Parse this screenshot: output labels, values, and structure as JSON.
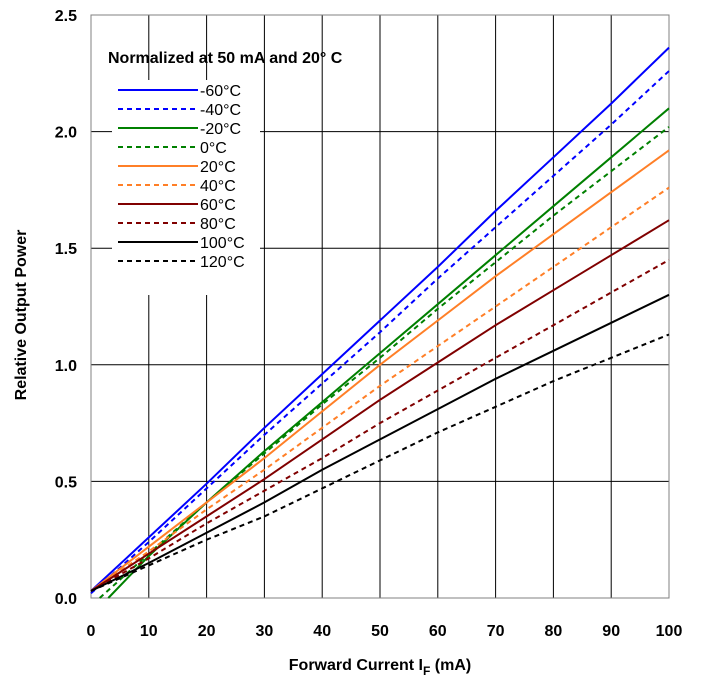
{
  "chart_data": {
    "type": "line",
    "title": "",
    "annotation": "Normalized at 50 mA and 20° C",
    "xlabel": "Forward Current I",
    "xlabel_sub": "F",
    "xlabel_unit": " (mA)",
    "ylabel": "Relative Output Power",
    "xlim": [
      0,
      100
    ],
    "ylim": [
      0,
      2.5
    ],
    "x_ticks": [
      "0",
      "10",
      "20",
      "30",
      "40",
      "50",
      "60",
      "70",
      "80",
      "90",
      "100"
    ],
    "y_ticks": [
      "0.0",
      "0.5",
      "1.0",
      "1.5",
      "2.0",
      "2.5"
    ],
    "grid": true,
    "legend_position": "top-left",
    "series": [
      {
        "name": "-60°C",
        "color": "#0000ff",
        "dashed": false,
        "x": [
          0,
          10,
          20,
          30,
          40,
          50,
          60,
          70,
          80,
          90,
          100
        ],
        "y": [
          0.03,
          0.26,
          0.49,
          0.73,
          0.96,
          1.19,
          1.42,
          1.66,
          1.89,
          2.12,
          2.36
        ]
      },
      {
        "name": "-40°C",
        "color": "#0000ff",
        "dashed": true,
        "x": [
          0,
          10,
          20,
          30,
          40,
          50,
          60,
          70,
          80,
          90,
          100
        ],
        "y": [
          0.02,
          0.24,
          0.47,
          0.7,
          0.92,
          1.14,
          1.37,
          1.59,
          1.81,
          2.03,
          2.26
        ]
      },
      {
        "name": "-20°C",
        "color": "#008000",
        "dashed": false,
        "x": [
          3,
          10,
          20,
          30,
          40,
          50,
          60,
          70,
          80,
          90,
          100
        ],
        "y": [
          0.0,
          0.18,
          0.41,
          0.63,
          0.84,
          1.05,
          1.26,
          1.47,
          1.68,
          1.89,
          2.1
        ]
      },
      {
        "name": "0°C",
        "color": "#008000",
        "dashed": true,
        "x": [
          1.5,
          10,
          20,
          30,
          40,
          50,
          60,
          70,
          80,
          90,
          100
        ],
        "y": [
          0.0,
          0.19,
          0.41,
          0.62,
          0.83,
          1.03,
          1.24,
          1.44,
          1.64,
          1.83,
          2.02
        ]
      },
      {
        "name": "20°C",
        "color": "#ff7f27",
        "dashed": false,
        "x": [
          0,
          10,
          20,
          30,
          40,
          50,
          60,
          70,
          80,
          90,
          100
        ],
        "y": [
          0.03,
          0.22,
          0.41,
          0.6,
          0.8,
          1.0,
          1.19,
          1.38,
          1.56,
          1.74,
          1.92
        ]
      },
      {
        "name": "40°C",
        "color": "#ff7f27",
        "dashed": true,
        "x": [
          0,
          10,
          20,
          30,
          40,
          50,
          60,
          70,
          80,
          90,
          100
        ],
        "y": [
          0.03,
          0.2,
          0.38,
          0.55,
          0.73,
          0.91,
          1.08,
          1.25,
          1.42,
          1.59,
          1.76
        ]
      },
      {
        "name": "60°C",
        "color": "#800000",
        "dashed": false,
        "x": [
          0,
          10,
          20,
          30,
          40,
          50,
          60,
          70,
          80,
          90,
          100
        ],
        "y": [
          0.03,
          0.19,
          0.35,
          0.51,
          0.68,
          0.85,
          1.01,
          1.17,
          1.32,
          1.47,
          1.62
        ]
      },
      {
        "name": "80°C",
        "color": "#800000",
        "dashed": true,
        "x": [
          0,
          10,
          20,
          30,
          40,
          50,
          60,
          70,
          80,
          90,
          100
        ],
        "y": [
          0.03,
          0.17,
          0.32,
          0.46,
          0.6,
          0.75,
          0.89,
          1.03,
          1.17,
          1.31,
          1.45
        ]
      },
      {
        "name": "100°C",
        "color": "#000000",
        "dashed": false,
        "x": [
          0,
          10,
          20,
          30,
          40,
          50,
          60,
          70,
          80,
          90,
          100
        ],
        "y": [
          0.03,
          0.15,
          0.28,
          0.41,
          0.55,
          0.68,
          0.81,
          0.94,
          1.06,
          1.18,
          1.3
        ]
      },
      {
        "name": "120°C",
        "color": "#000000",
        "dashed": true,
        "x": [
          0,
          10,
          20,
          30,
          40,
          50,
          60,
          70,
          80,
          90,
          100
        ],
        "y": [
          0.03,
          0.14,
          0.25,
          0.35,
          0.47,
          0.59,
          0.71,
          0.82,
          0.93,
          1.03,
          1.13
        ]
      }
    ]
  }
}
